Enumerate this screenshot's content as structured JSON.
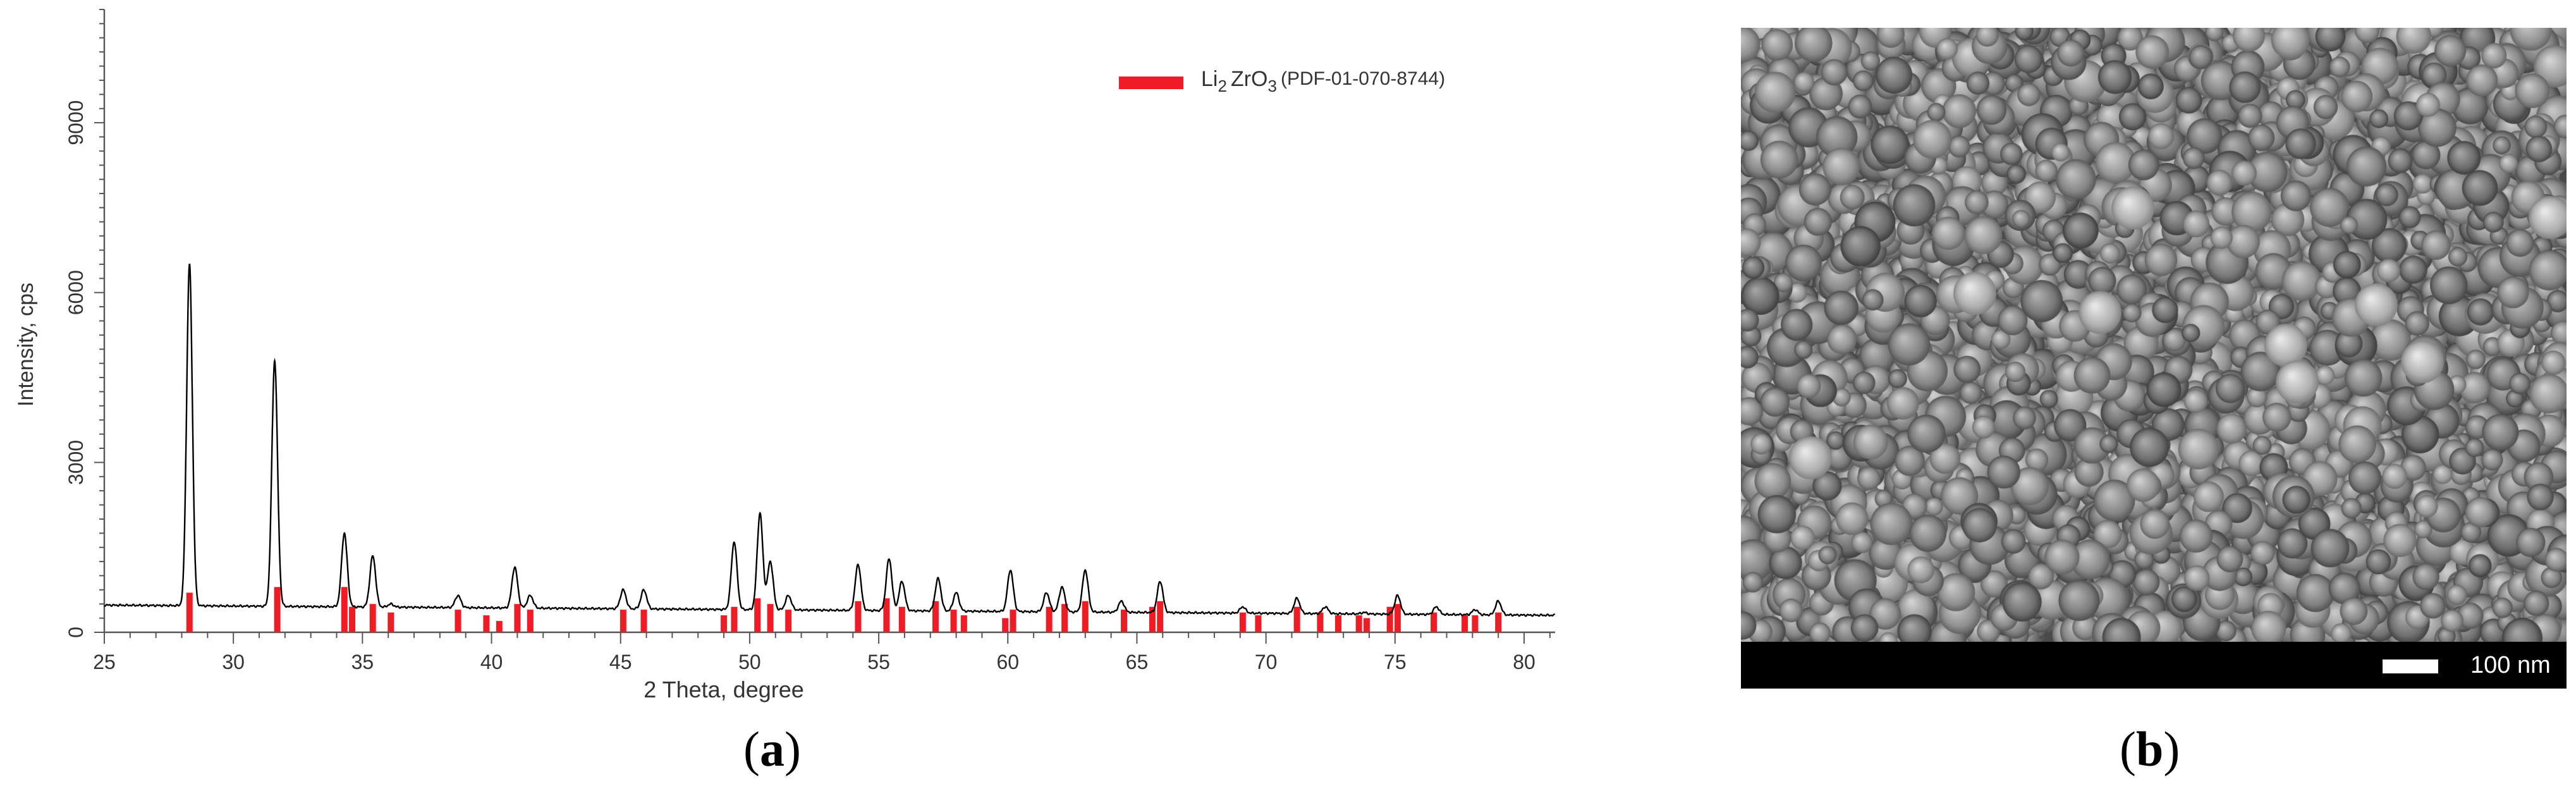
{
  "panels": {
    "a": {
      "open": "(",
      "letter": "a",
      "close": ")"
    },
    "b": {
      "open": "(",
      "letter": "b",
      "close": ")"
    }
  },
  "chart_data": {
    "type": "line",
    "xlabel": "2 Theta, degree",
    "ylabel": "Intensity, cps",
    "xlim": [
      25,
      81.2
    ],
    "ylim": [
      0,
      11000
    ],
    "xticks": [
      25,
      30,
      35,
      40,
      45,
      50,
      55,
      60,
      65,
      70,
      75,
      80
    ],
    "yticks": [
      0,
      3000,
      6000,
      9000
    ],
    "legend": {
      "placement": "top-right",
      "color": "#ee1c25",
      "label_main": "Li",
      "label_sub1": "2",
      "label_mid": "ZrO",
      "label_sub2": "3",
      "label_tail": "(PDF-01-070-8744)"
    },
    "baseline": {
      "start": 480,
      "end": 300
    },
    "measured_peaks": [
      {
        "x": 28.3,
        "y": 6500
      },
      {
        "x": 31.6,
        "y": 4800
      },
      {
        "x": 34.3,
        "y": 1750
      },
      {
        "x": 35.4,
        "y": 1350
      },
      {
        "x": 36.1,
        "y": 500
      },
      {
        "x": 38.7,
        "y": 650
      },
      {
        "x": 40.9,
        "y": 1150
      },
      {
        "x": 41.5,
        "y": 650
      },
      {
        "x": 45.1,
        "y": 750
      },
      {
        "x": 45.9,
        "y": 750
      },
      {
        "x": 49.4,
        "y": 1600
      },
      {
        "x": 50.4,
        "y": 2100
      },
      {
        "x": 50.8,
        "y": 1250
      },
      {
        "x": 51.5,
        "y": 650
      },
      {
        "x": 54.2,
        "y": 1200
      },
      {
        "x": 55.4,
        "y": 1300
      },
      {
        "x": 55.9,
        "y": 900
      },
      {
        "x": 57.3,
        "y": 950
      },
      {
        "x": 58.0,
        "y": 700
      },
      {
        "x": 60.1,
        "y": 1100
      },
      {
        "x": 61.5,
        "y": 700
      },
      {
        "x": 62.1,
        "y": 800
      },
      {
        "x": 63.0,
        "y": 1100
      },
      {
        "x": 64.4,
        "y": 550
      },
      {
        "x": 65.9,
        "y": 900
      },
      {
        "x": 69.1,
        "y": 450
      },
      {
        "x": 71.2,
        "y": 600
      },
      {
        "x": 72.3,
        "y": 450
      },
      {
        "x": 73.8,
        "y": 350
      },
      {
        "x": 75.1,
        "y": 650
      },
      {
        "x": 76.6,
        "y": 450
      },
      {
        "x": 78.1,
        "y": 400
      },
      {
        "x": 79.0,
        "y": 550
      }
    ],
    "reference_lines": [
      {
        "x": 28.3,
        "y": 700
      },
      {
        "x": 31.7,
        "y": 800
      },
      {
        "x": 34.3,
        "y": 800
      },
      {
        "x": 34.6,
        "y": 450
      },
      {
        "x": 35.4,
        "y": 500
      },
      {
        "x": 36.1,
        "y": 350
      },
      {
        "x": 38.7,
        "y": 400
      },
      {
        "x": 39.8,
        "y": 300
      },
      {
        "x": 40.3,
        "y": 200
      },
      {
        "x": 41.0,
        "y": 500
      },
      {
        "x": 41.5,
        "y": 400
      },
      {
        "x": 45.1,
        "y": 400
      },
      {
        "x": 45.9,
        "y": 400
      },
      {
        "x": 49.0,
        "y": 300
      },
      {
        "x": 49.4,
        "y": 450
      },
      {
        "x": 50.3,
        "y": 600
      },
      {
        "x": 50.8,
        "y": 500
      },
      {
        "x": 51.5,
        "y": 400
      },
      {
        "x": 54.2,
        "y": 550
      },
      {
        "x": 55.3,
        "y": 600
      },
      {
        "x": 55.9,
        "y": 450
      },
      {
        "x": 57.2,
        "y": 550
      },
      {
        "x": 57.9,
        "y": 400
      },
      {
        "x": 58.3,
        "y": 300
      },
      {
        "x": 59.9,
        "y": 250
      },
      {
        "x": 60.2,
        "y": 400
      },
      {
        "x": 61.6,
        "y": 450
      },
      {
        "x": 62.2,
        "y": 500
      },
      {
        "x": 63.0,
        "y": 550
      },
      {
        "x": 64.5,
        "y": 400
      },
      {
        "x": 65.6,
        "y": 450
      },
      {
        "x": 65.9,
        "y": 550
      },
      {
        "x": 69.1,
        "y": 350
      },
      {
        "x": 69.7,
        "y": 300
      },
      {
        "x": 71.2,
        "y": 450
      },
      {
        "x": 72.1,
        "y": 350
      },
      {
        "x": 72.8,
        "y": 300
      },
      {
        "x": 73.6,
        "y": 300
      },
      {
        "x": 73.9,
        "y": 250
      },
      {
        "x": 74.8,
        "y": 450
      },
      {
        "x": 75.1,
        "y": 500
      },
      {
        "x": 76.5,
        "y": 350
      },
      {
        "x": 77.7,
        "y": 300
      },
      {
        "x": 78.1,
        "y": 300
      },
      {
        "x": 79.0,
        "y": 350
      }
    ]
  },
  "sem": {
    "scale_label": "100 nm"
  }
}
